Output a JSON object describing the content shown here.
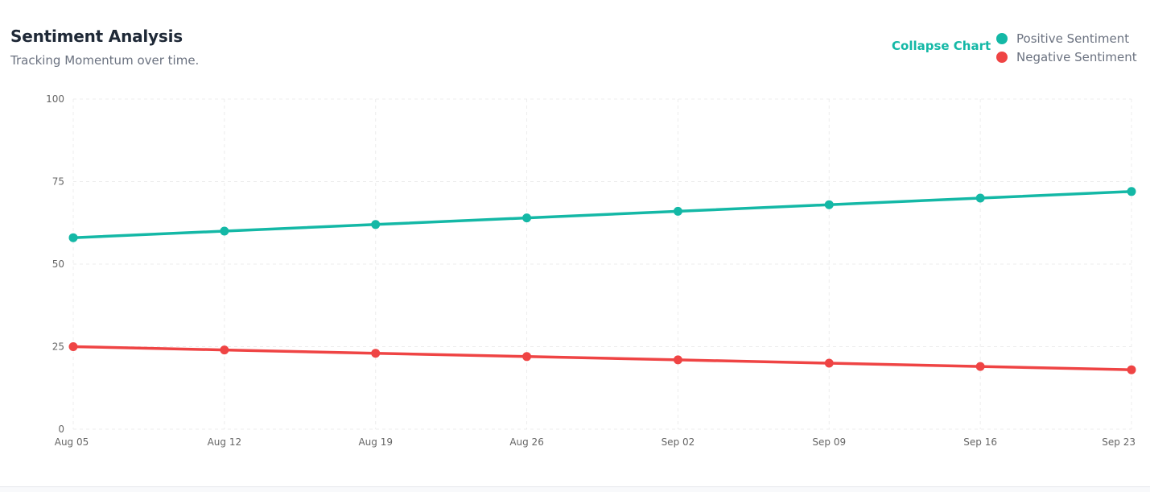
{
  "header": {
    "title": "Sentiment Analysis",
    "subtitle": "Tracking Momentum over time.",
    "collapse_label": "Collapse Chart"
  },
  "legend": [
    {
      "label": "Positive Sentiment",
      "color": "#14b8a6"
    },
    {
      "label": "Negative Sentiment",
      "color": "#ef4444"
    }
  ],
  "chart_data": {
    "type": "line",
    "title": "Sentiment Analysis",
    "subtitle": "Tracking Momentum over time.",
    "xlabel": "",
    "ylabel": "",
    "categories": [
      "Aug 05",
      "Aug 12",
      "Aug 19",
      "Aug 26",
      "Sep 02",
      "Sep 09",
      "Sep 16",
      "Sep 23"
    ],
    "series": [
      {
        "name": "Positive Sentiment",
        "color": "#14b8a6",
        "values": [
          58,
          60,
          62,
          64,
          66,
          68,
          70,
          72
        ]
      },
      {
        "name": "Negative Sentiment",
        "color": "#ef4444",
        "values": [
          25,
          24,
          23,
          22,
          21,
          20,
          19,
          18
        ]
      }
    ],
    "ylim": [
      0,
      100
    ],
    "yticks": [
      0,
      25,
      50,
      75,
      100
    ],
    "grid": true,
    "legend_position": "top-right"
  }
}
